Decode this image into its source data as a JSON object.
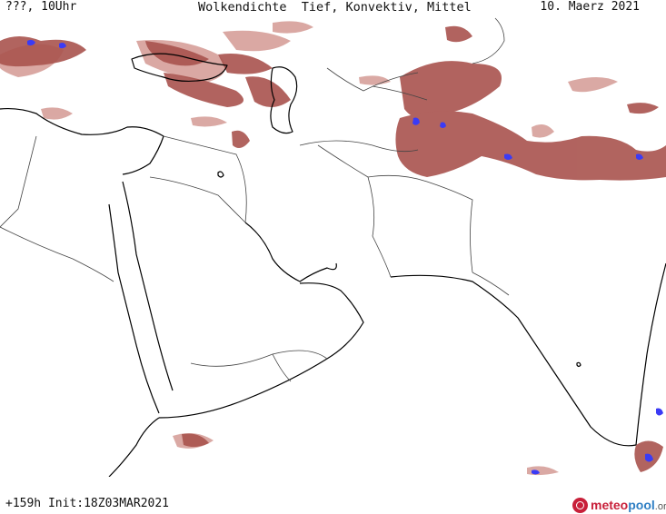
{
  "header": {
    "left": "???, 10Uhr",
    "center": "Wolkendichte  Tief, Konvektiv, Mittel",
    "right": "10. Maerz 2021"
  },
  "footer": {
    "run_info": "+159h Init:18Z03MAR2021"
  },
  "logo": {
    "part1": "meteo",
    "part2": "pool",
    "part3": ".org"
  },
  "colors": {
    "cloud_low": "#a9534e",
    "cloud_light": "#d49a94",
    "convective": "#3b3bf5",
    "coastline": "#000000",
    "borders": "#444444"
  },
  "icons": {
    "logo": "meteopool-logo-icon"
  }
}
